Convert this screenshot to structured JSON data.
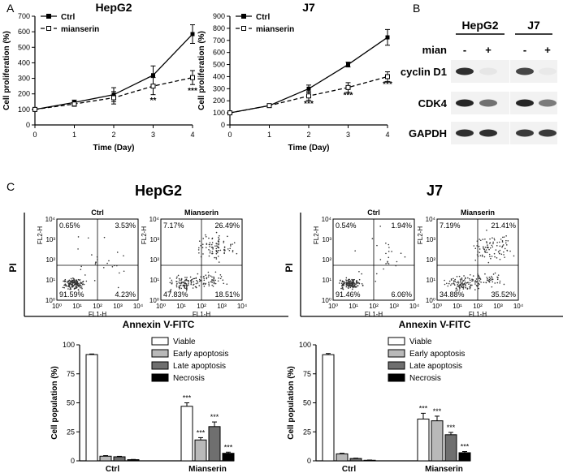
{
  "panel_labels": {
    "a": "A",
    "b": "B",
    "c": "C"
  },
  "colors": {
    "ink": "#000000",
    "viable": "#ffffff",
    "early": "#b9b9b9",
    "late": "#6f6f6f",
    "necrosis": "#000000",
    "blot_bg": "#f2f2f2",
    "band": "#1a1a1a",
    "dot": "#333333"
  },
  "chart_data": [
    {
      "id": "prolif-hepg2",
      "type": "line",
      "title": "HepG2",
      "xlabel": "Time (Day)",
      "ylabel": "Cell proliferation (%)",
      "xlim": [
        0,
        4
      ],
      "ylim": [
        0,
        700
      ],
      "x": [
        0,
        1,
        2,
        3,
        4
      ],
      "xticks": [
        "0",
        "1",
        "2",
        "3",
        "4"
      ],
      "yticks": [
        "0",
        "100",
        "200",
        "300",
        "400",
        "500",
        "600",
        "700"
      ],
      "series": [
        {
          "name": "Ctrl",
          "style": "solid",
          "values": [
            100,
            145,
            195,
            320,
            585
          ],
          "err": [
            5,
            15,
            45,
            60,
            60
          ]
        },
        {
          "name": "mianserin",
          "style": "dashed",
          "values": [
            100,
            135,
            175,
            250,
            305
          ],
          "err": [
            5,
            15,
            40,
            55,
            45
          ]
        }
      ],
      "annotations": [
        {
          "x": 3,
          "y": 140,
          "text": "**"
        },
        {
          "x": 4,
          "y": 205,
          "text": "***"
        }
      ]
    },
    {
      "id": "prolif-j7",
      "type": "line",
      "title": "J7",
      "xlabel": "Time (Day)",
      "ylabel": "Cell proliferation (%)",
      "xlim": [
        0,
        4
      ],
      "ylim": [
        0,
        900
      ],
      "x": [
        0,
        1,
        2,
        3,
        4
      ],
      "xticks": [
        "0",
        "1",
        "2",
        "3",
        "4"
      ],
      "yticks": [
        "0",
        "100",
        "200",
        "300",
        "400",
        "500",
        "600",
        "700",
        "800",
        "900"
      ],
      "series": [
        {
          "name": "Ctrl",
          "style": "solid",
          "values": [
            100,
            160,
            300,
            500,
            725
          ],
          "err": [
            5,
            8,
            30,
            20,
            65
          ]
        },
        {
          "name": "mianserin",
          "style": "dashed",
          "values": [
            100,
            160,
            240,
            310,
            400
          ],
          "err": [
            5,
            8,
            35,
            40,
            40
          ]
        }
      ],
      "annotations": [
        {
          "x": 2,
          "y": 155,
          "text": "***"
        },
        {
          "x": 3,
          "y": 225,
          "text": "***"
        },
        {
          "x": 4,
          "y": 315,
          "text": "***"
        }
      ]
    },
    {
      "id": "pop-hepg2",
      "type": "bar",
      "title": "",
      "xlabel": "",
      "ylabel": "Cell population (%)",
      "ylim": [
        0,
        100
      ],
      "yticks": [
        "0",
        "25",
        "50",
        "75",
        "100"
      ],
      "categories": [
        "Ctrl",
        "Mianserin"
      ],
      "series": [
        {
          "name": "Viable",
          "values": [
            91.6,
            47.0
          ],
          "err": [
            0.5,
            3.0
          ],
          "sig": [
            "",
            "***"
          ]
        },
        {
          "name": "Early apoptosis",
          "values": [
            4.0,
            18.0
          ],
          "err": [
            0.5,
            2.0
          ],
          "sig": [
            "",
            "***"
          ]
        },
        {
          "name": "Late apoptosis",
          "values": [
            3.5,
            29.5
          ],
          "err": [
            0.4,
            4.0
          ],
          "sig": [
            "",
            "***"
          ]
        },
        {
          "name": "Necrosis",
          "values": [
            1.0,
            6.5
          ],
          "err": [
            0.2,
            1.0
          ],
          "sig": [
            "",
            "***"
          ]
        }
      ]
    },
    {
      "id": "pop-j7",
      "type": "bar",
      "title": "",
      "xlabel": "",
      "ylabel": "Cell population (%)",
      "ylim": [
        0,
        100
      ],
      "yticks": [
        "0",
        "25",
        "50",
        "75",
        "100"
      ],
      "categories": [
        "Ctrl",
        "Mianserin"
      ],
      "series": [
        {
          "name": "Viable",
          "values": [
            91.5,
            36.0
          ],
          "err": [
            1.0,
            5.0
          ],
          "sig": [
            "",
            "***"
          ]
        },
        {
          "name": "Early apoptosis",
          "values": [
            6.0,
            34.5
          ],
          "err": [
            0.5,
            4.0
          ],
          "sig": [
            "",
            "***"
          ]
        },
        {
          "name": "Late apoptosis",
          "values": [
            2.0,
            22.5
          ],
          "err": [
            0.3,
            2.0
          ],
          "sig": [
            "",
            "***"
          ]
        },
        {
          "name": "Necrosis",
          "values": [
            0.5,
            7.0
          ],
          "err": [
            0.2,
            1.0
          ],
          "sig": [
            "",
            "***"
          ]
        }
      ]
    }
  ],
  "western": {
    "cell_lines": [
      "HepG2",
      "J7"
    ],
    "treatment_label": "mian",
    "lanes": [
      "-",
      "+",
      "-",
      "+"
    ],
    "proteins": [
      "cyclin D1",
      "CDK4",
      "GAPDH"
    ],
    "intensity": [
      [
        0.9,
        0.05,
        0.8,
        0.04
      ],
      [
        0.95,
        0.6,
        0.95,
        0.55
      ],
      [
        0.9,
        0.9,
        0.85,
        0.85
      ]
    ]
  },
  "flow": {
    "groups": [
      {
        "title": "HepG2",
        "xlabel": "Annexin V-FITC",
        "ylabel": "PI",
        "plots": [
          {
            "title": "Ctrl",
            "q_ul": "0.65%",
            "q_ur": "3.53%",
            "q_ll": "91.59%",
            "q_lr": "4.23%"
          },
          {
            "title": "Mianserin",
            "q_ul": "7.17%",
            "q_ur": "26.49%",
            "q_ll": "47.83%",
            "q_lr": "18.51%"
          }
        ]
      },
      {
        "title": "J7",
        "xlabel": "Annexin V-FITC",
        "ylabel": "PI",
        "plots": [
          {
            "title": "Ctrl",
            "q_ul": "0.54%",
            "q_ur": "1.94%",
            "q_ll": "91.46%",
            "q_lr": "6.06%"
          },
          {
            "title": "Mianserin",
            "q_ul": "7.19%",
            "q_ur": "21.41%",
            "q_ll": "34.88%",
            "q_lr": "35.52%"
          }
        ]
      }
    ],
    "axis_x_name": "FL1-H",
    "axis_y_name": "FL2-H",
    "tick_labels": [
      "10⁰",
      "10¹",
      "10²",
      "10³",
      "10⁴"
    ]
  }
}
